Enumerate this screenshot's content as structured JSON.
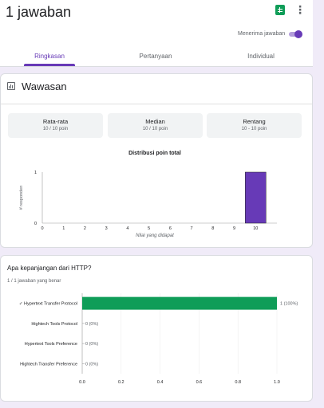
{
  "header": {
    "title": "1 jawaban",
    "accept_label": "Menerima jawaban",
    "accepting": true
  },
  "tabs": [
    {
      "label": "Ringkasan",
      "active": true
    },
    {
      "label": "Pertanyaan",
      "active": false
    },
    {
      "label": "Individual",
      "active": false
    }
  ],
  "colors": {
    "accent": "#673ab7",
    "sheets": "#0f9d58",
    "correct_bar": "#0f9d58"
  },
  "icons": {
    "sheets": "google-sheets-icon",
    "more": "more-vert-icon",
    "insights": "insights-chart-icon"
  },
  "insights": {
    "title": "Wawasan",
    "stats": [
      {
        "label": "Rata-rata",
        "value": "10 / 10 poin"
      },
      {
        "label": "Median",
        "value": "10 / 10 poin"
      },
      {
        "label": "Rentang",
        "value": "10 - 10 poin"
      }
    ]
  },
  "question": {
    "title": "Apa kepanjangan dari HTTP?",
    "correct_summary": "1 / 1 jawaban yang benar"
  },
  "chart_data": [
    {
      "type": "bar",
      "title": "Distribusi poin total",
      "xlabel": "Nilai yang didapat",
      "ylabel": "# responden",
      "categories": [
        "0",
        "1",
        "2",
        "3",
        "4",
        "5",
        "6",
        "7",
        "8",
        "9",
        "10"
      ],
      "values": [
        0,
        0,
        0,
        0,
        0,
        0,
        0,
        0,
        0,
        0,
        1
      ],
      "yticks": [
        "0",
        "1"
      ],
      "ylim": [
        0,
        1
      ],
      "bar_color": "#673ab7"
    },
    {
      "type": "bar",
      "orientation": "horizontal",
      "categories": [
        "Hypertext Transfer Protocol",
        "Hightech Tools Protocol",
        "Hypertext Tools Preference",
        "Hightech Transfer Preference"
      ],
      "correct_mark": "✓",
      "values": [
        1,
        0,
        0,
        0
      ],
      "value_labels": [
        "1 (100%)",
        "0 (0%)",
        "0 (0%)",
        "0 (0%)"
      ],
      "correct_index": 0,
      "xticks": [
        "0.0",
        "0.2",
        "0.4",
        "0.6",
        "0.8",
        "1.0"
      ],
      "xlim": [
        0,
        1
      ],
      "grid": true
    }
  ]
}
